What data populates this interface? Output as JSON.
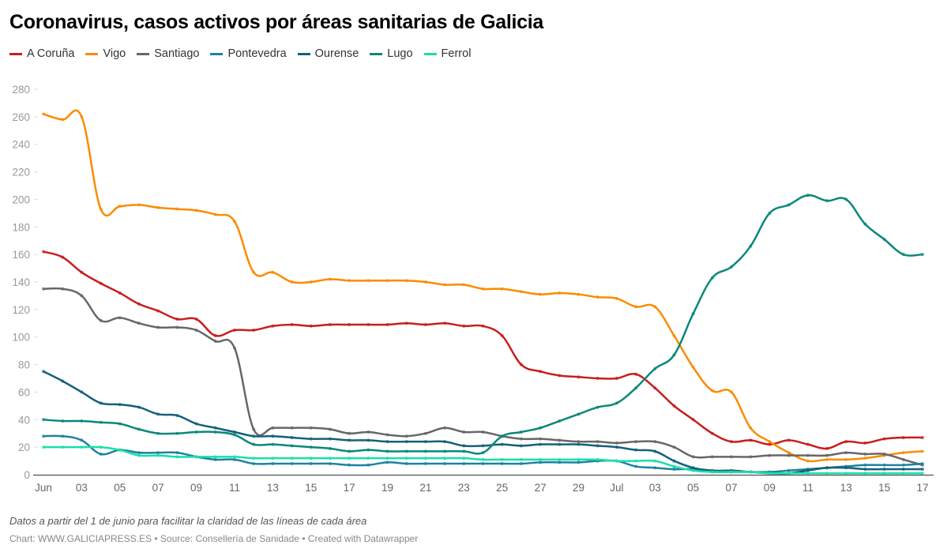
{
  "title": "Coronavirus, casos activos por áreas sanitarias de Galicia",
  "note": "Datos a partir del 1 de junio para facilitar la claridad de las líneas de cada área",
  "credits": "Chart: WWW.GALICIAPRESS.ES • Source: Consellería de Sanidade • Created with Datawrapper",
  "chart_data": {
    "type": "line",
    "title": "Coronavirus, casos activos por áreas sanitarias de Galicia",
    "x_start": "2020-06-01",
    "x_end": "2020-07-17",
    "x_tick_labels": [
      "Jun",
      "03",
      "05",
      "07",
      "09",
      "11",
      "13",
      "15",
      "17",
      "19",
      "21",
      "23",
      "25",
      "27",
      "29",
      "Jul",
      "03",
      "05",
      "07",
      "09",
      "11",
      "13",
      "15",
      "17"
    ],
    "ylim": [
      0,
      280
    ],
    "y_ticks": [
      0,
      20,
      40,
      60,
      80,
      100,
      120,
      140,
      160,
      180,
      200,
      220,
      240,
      260,
      280
    ],
    "grid": false,
    "legend": "top-left",
    "series": [
      {
        "name": "A Coruña",
        "color": "#c71e1d",
        "values": [
          162,
          158,
          147,
          139,
          132,
          124,
          119,
          113,
          113,
          101,
          105,
          105,
          108,
          109,
          108,
          109,
          109,
          109,
          109,
          110,
          109,
          110,
          108,
          108,
          101,
          80,
          75,
          72,
          71,
          70,
          70,
          73,
          63,
          50,
          40,
          30,
          24,
          25,
          22,
          25,
          22,
          19,
          24,
          23,
          26,
          27,
          27
        ]
      },
      {
        "name": "Vigo",
        "color": "#fa8c00",
        "values": [
          262,
          258,
          260,
          193,
          195,
          196,
          194,
          193,
          192,
          189,
          184,
          147,
          147,
          140,
          140,
          142,
          141,
          141,
          141,
          141,
          140,
          138,
          138,
          135,
          135,
          133,
          131,
          132,
          131,
          129,
          128,
          122,
          122,
          101,
          78,
          61,
          60,
          34,
          24,
          16,
          10,
          11,
          11,
          12,
          14,
          16,
          17
        ]
      },
      {
        "name": "Santiago",
        "color": "#676767",
        "values": [
          135,
          135,
          130,
          112,
          114,
          110,
          107,
          107,
          105,
          97,
          92,
          33,
          34,
          34,
          34,
          33,
          30,
          31,
          29,
          28,
          30,
          34,
          31,
          31,
          28,
          26,
          26,
          25,
          24,
          24,
          23,
          24,
          24,
          20,
          13,
          13,
          13,
          13,
          14,
          14,
          14,
          14,
          16,
          15,
          15,
          11,
          7
        ]
      },
      {
        "name": "Pontevedra",
        "color": "#1d81a2",
        "values": [
          28,
          28,
          25,
          15,
          18,
          16,
          16,
          16,
          13,
          11,
          11,
          8,
          8,
          8,
          8,
          8,
          7,
          7,
          9,
          8,
          8,
          8,
          8,
          8,
          8,
          8,
          9,
          9,
          9,
          10,
          10,
          6,
          5,
          4,
          4,
          2,
          2,
          2,
          2,
          3,
          4,
          5,
          6,
          7,
          7,
          7,
          8
        ]
      },
      {
        "name": "Ourense",
        "color": "#15607a",
        "values": [
          75,
          68,
          60,
          52,
          51,
          49,
          44,
          43,
          37,
          34,
          31,
          28,
          28,
          27,
          26,
          26,
          25,
          25,
          24,
          24,
          24,
          24,
          21,
          21,
          22,
          21,
          22,
          22,
          22,
          21,
          20,
          18,
          17,
          10,
          5,
          3,
          3,
          2,
          1,
          1,
          3,
          5,
          5,
          4,
          4,
          4,
          4
        ]
      },
      {
        "name": "Lugo",
        "color": "#09887a",
        "values": [
          40,
          39,
          39,
          38,
          37,
          33,
          30,
          30,
          31,
          31,
          29,
          22,
          22,
          21,
          20,
          19,
          17,
          18,
          17,
          17,
          17,
          17,
          17,
          16,
          28,
          31,
          34,
          39,
          44,
          49,
          52,
          63,
          77,
          87,
          117,
          143,
          151,
          166,
          190,
          196,
          203,
          199,
          200,
          182,
          171,
          160,
          160
        ]
      },
      {
        "name": "Ferrol",
        "color": "#18e0a8",
        "values": [
          20,
          20,
          20,
          20,
          18,
          14,
          14,
          13,
          13,
          13,
          13,
          12,
          12,
          12,
          12,
          12,
          12,
          12,
          12,
          12,
          12,
          12,
          12,
          11,
          11,
          11,
          11,
          11,
          11,
          11,
          10,
          10,
          10,
          6,
          3,
          2,
          2,
          2,
          1,
          1,
          1,
          1,
          1,
          1,
          1,
          1,
          1
        ]
      }
    ]
  }
}
